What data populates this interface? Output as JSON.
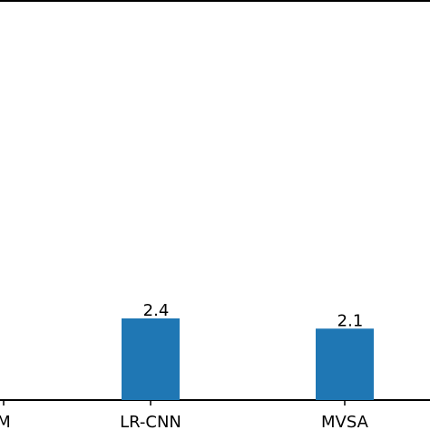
{
  "chart_data": {
    "type": "bar",
    "categories": [
      "M",
      "LR-CNN",
      "MVSA"
    ],
    "values": [
      null,
      2.4,
      2.1
    ],
    "data_labels": [
      "",
      "2.4",
      "2.1"
    ],
    "bar_color": "#1f77b4",
    "axis_color": "#000000",
    "grid": false,
    "title": "",
    "xlabel": "",
    "ylabel": ""
  }
}
